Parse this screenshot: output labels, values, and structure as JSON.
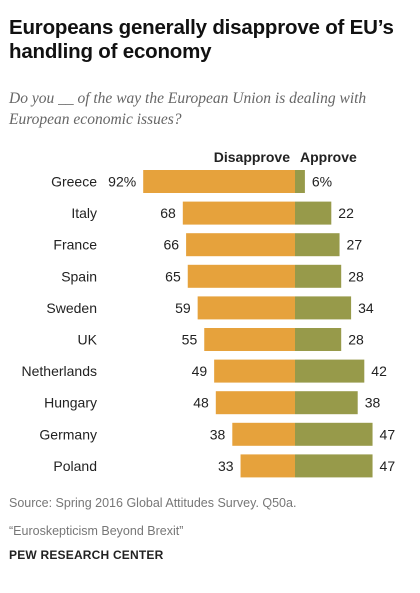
{
  "title": "Europeans generally disapprove of EU’s handling of economy",
  "subtitle": "Do you __ of the way the European Union is dealing with European economic issues?",
  "source": "Source: Spring 2016 Global Attitudes Survey. Q50a.",
  "report": "“Euroskepticism Beyond Brexit”",
  "org": "PEW RESEARCH CENTER",
  "colors": {
    "disapprove": "#E6A23C",
    "approve": "#979A4A"
  },
  "chart_data": {
    "type": "bar",
    "orientation": "horizontal-diverging",
    "categories": [
      "Greece",
      "Italy",
      "France",
      "Spain",
      "Sweden",
      "UK",
      "Netherlands",
      "Hungary",
      "Germany",
      "Poland"
    ],
    "series": [
      {
        "name": "Disapprove",
        "values": [
          92,
          68,
          66,
          65,
          59,
          55,
          49,
          48,
          38,
          33
        ]
      },
      {
        "name": "Approve",
        "values": [
          6,
          22,
          27,
          28,
          34,
          28,
          42,
          38,
          47,
          47
        ]
      }
    ],
    "value_labels": {
      "Disapprove": [
        "92%",
        "68",
        "66",
        "65",
        "59",
        "55",
        "49",
        "48",
        "38",
        "33"
      ],
      "Approve": [
        "6%",
        "22",
        "27",
        "28",
        "34",
        "28",
        "42",
        "38",
        "47",
        "47"
      ]
    },
    "legend": "top"
  }
}
